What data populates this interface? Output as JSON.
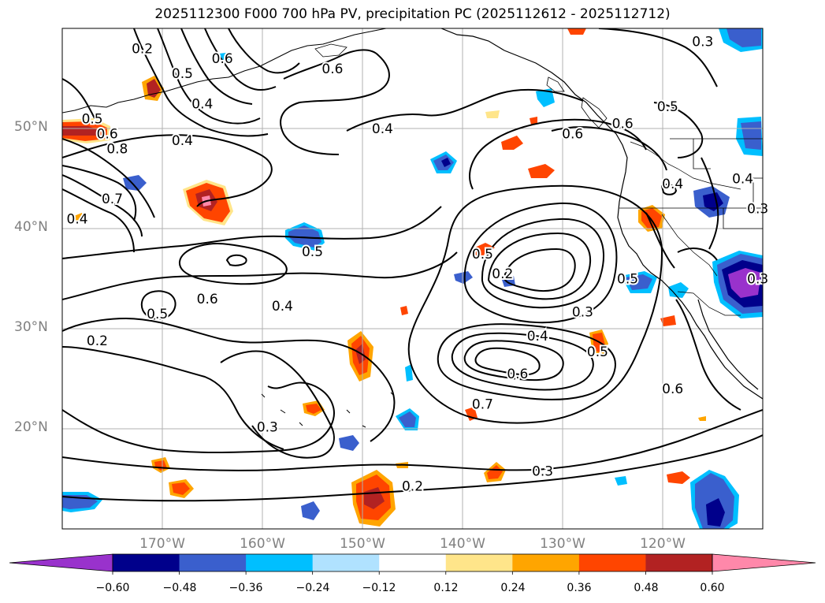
{
  "title": "2025112300 F000 700 hPa PV, precipitation PC (2025112612 - 2025112712)",
  "map": {
    "projection": "Plate Carree",
    "extent": {
      "lon_min": -180,
      "lon_max": -110,
      "lat_min": 10,
      "lat_max": 60
    },
    "lat_ticks": [
      {
        "lat": 50,
        "label": "50°N"
      },
      {
        "lat": 40,
        "label": "40°N"
      },
      {
        "lat": 30,
        "label": "30°N"
      },
      {
        "lat": 20,
        "label": "20°N"
      }
    ],
    "lon_ticks": [
      {
        "lon": -170,
        "label": "170°W"
      },
      {
        "lon": -160,
        "label": "160°W"
      },
      {
        "lon": -150,
        "label": "150°W"
      },
      {
        "lon": -140,
        "label": "140°W"
      },
      {
        "lon": -130,
        "label": "130°W"
      },
      {
        "lon": -120,
        "label": "120°W"
      }
    ],
    "contour_labels": [
      {
        "text": "0.2",
        "lon": -172,
        "lat": 58
      },
      {
        "text": "0.5",
        "lon": -168,
        "lat": 55.5
      },
      {
        "text": "0.4",
        "lon": -166,
        "lat": 52.5
      },
      {
        "text": "0.6",
        "lon": -164,
        "lat": 57
      },
      {
        "text": "0.6",
        "lon": -153,
        "lat": 56
      },
      {
        "text": "0.5",
        "lon": -177,
        "lat": 51
      },
      {
        "text": "0.6",
        "lon": -175.5,
        "lat": 49.5
      },
      {
        "text": "0.8",
        "lon": -174.5,
        "lat": 48
      },
      {
        "text": "0.4",
        "lon": -168,
        "lat": 48.8
      },
      {
        "text": "0.4",
        "lon": -148,
        "lat": 50
      },
      {
        "text": "0.7",
        "lon": -175,
        "lat": 43
      },
      {
        "text": "0.4",
        "lon": -178.5,
        "lat": 41
      },
      {
        "text": "0.6",
        "lon": -129,
        "lat": 49.5
      },
      {
        "text": "0.6",
        "lon": -124,
        "lat": 50.5
      },
      {
        "text": "0.5",
        "lon": -119.5,
        "lat": 52.2
      },
      {
        "text": "0.4",
        "lon": -112,
        "lat": 45
      },
      {
        "text": "0.3",
        "lon": -110.5,
        "lat": 42
      },
      {
        "text": "0.4",
        "lon": -119,
        "lat": 44.5
      },
      {
        "text": "0.3",
        "lon": -116,
        "lat": 58.7
      },
      {
        "text": "0.5",
        "lon": -155,
        "lat": 37.7
      },
      {
        "text": "0.5",
        "lon": -138,
        "lat": 37.5
      },
      {
        "text": "0.2",
        "lon": -136,
        "lat": 35.5
      },
      {
        "text": "0.6",
        "lon": -165.5,
        "lat": 33
      },
      {
        "text": "0.4",
        "lon": -158,
        "lat": 32.3
      },
      {
        "text": "0.5",
        "lon": -170.5,
        "lat": 31.5
      },
      {
        "text": "0.2",
        "lon": -176.5,
        "lat": 28.8
      },
      {
        "text": "0.5",
        "lon": -123.5,
        "lat": 35
      },
      {
        "text": "0.3",
        "lon": -110.5,
        "lat": 35
      },
      {
        "text": "0.3",
        "lon": -128,
        "lat": 31.7
      },
      {
        "text": "0.4",
        "lon": -132.5,
        "lat": 29.3
      },
      {
        "text": "0.5",
        "lon": -126.5,
        "lat": 27.7
      },
      {
        "text": "0.6",
        "lon": -134.5,
        "lat": 25.5
      },
      {
        "text": "0.7",
        "lon": -138,
        "lat": 22.5
      },
      {
        "text": "0.6",
        "lon": -119,
        "lat": 24
      },
      {
        "text": "0.3",
        "lon": -159.5,
        "lat": 20.2
      },
      {
        "text": "0.3",
        "lon": -132,
        "lat": 15.8
      },
      {
        "text": "0.2",
        "lon": -145,
        "lat": 14.3
      }
    ]
  },
  "colorbar": {
    "levels": [
      -0.6,
      -0.48,
      -0.36,
      -0.24,
      -0.12,
      0.12,
      0.24,
      0.36,
      0.48,
      0.6
    ],
    "tick_labels": [
      "−0.60",
      "−0.48",
      "−0.36",
      "−0.24",
      "−0.12",
      "0.12",
      "0.24",
      "0.36",
      "0.48",
      "0.60"
    ],
    "colors": [
      "#9932cc",
      "#00008b",
      "#3a5fcd",
      "#00bfff",
      "#b0e2ff",
      "#ffffff",
      "#ffe58a",
      "#ffa500",
      "#ff4500",
      "#b22222",
      "#ff88aa"
    ]
  },
  "colors": {
    "contour": "#000000",
    "gridline": "#b0b0b0",
    "tick_label": "#808080"
  }
}
